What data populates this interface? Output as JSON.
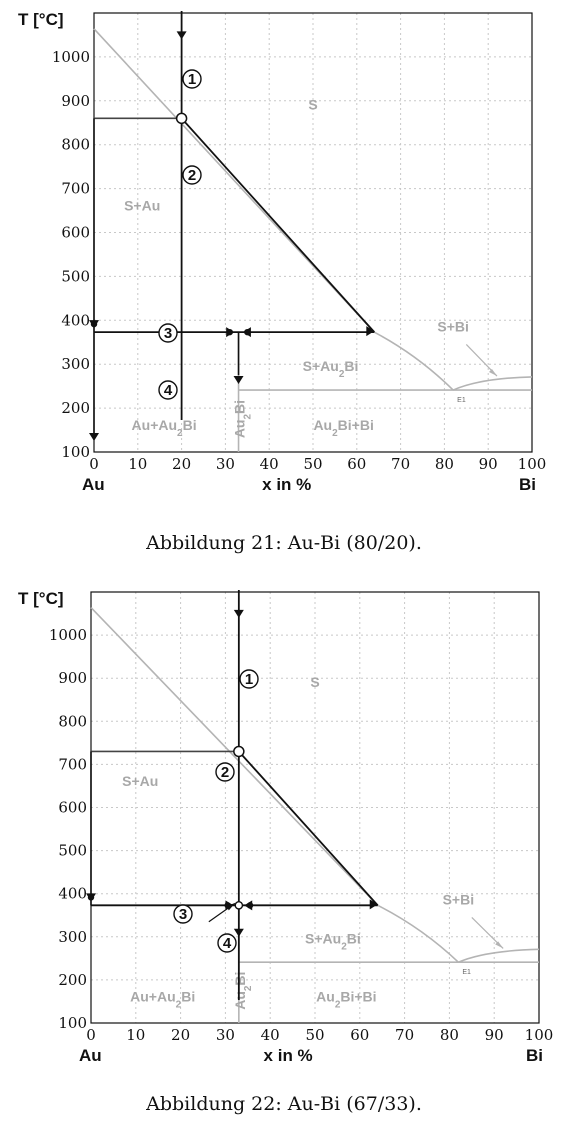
{
  "chart_data": [
    {
      "type": "diagram",
      "caption": "Abbildung 21: Au-Bi (80/20).",
      "ylabel": "T [°C]",
      "xlabel": "x  in %",
      "x_left_label": "Au",
      "x_right_label": "Bi",
      "xlim": [
        0,
        100
      ],
      "ylim": [
        100,
        1100
      ],
      "x_ticks": [
        "0",
        "10",
        "20",
        "30",
        "40",
        "50",
        "60",
        "70",
        "80",
        "90",
        "100"
      ],
      "y_ticks": [
        "100",
        "200",
        "300",
        "400",
        "500",
        "600",
        "700",
        "800",
        "900",
        "1000"
      ],
      "regions": [
        "S",
        "S+Au",
        "S+Au2Bi",
        "S+Bi",
        "Au+Au2Bi",
        "Au2Bi+Bi"
      ],
      "compound_label": "Au2Bi",
      "eutectic_label": "E1",
      "steps": [
        "1",
        "2",
        "3",
        "4"
      ],
      "composition_x": 20,
      "liquidus_T": 860,
      "peritectic_T": 373,
      "eutectic_T": 241,
      "eutectic_x": 82,
      "compound_x": 33,
      "peritectic_liquid_x": 64
    },
    {
      "type": "diagram",
      "caption": "Abbildung 22: Au-Bi (67/33).",
      "ylabel": "T [°C]",
      "xlabel": "x  in %",
      "x_left_label": "Au",
      "x_right_label": "Bi",
      "xlim": [
        0,
        100
      ],
      "ylim": [
        100,
        1100
      ],
      "x_ticks": [
        "0",
        "10",
        "20",
        "30",
        "40",
        "50",
        "60",
        "70",
        "80",
        "90",
        "100"
      ],
      "y_ticks": [
        "100",
        "200",
        "300",
        "400",
        "500",
        "600",
        "700",
        "800",
        "900",
        "1000"
      ],
      "regions": [
        "S",
        "S+Au",
        "S+Au2Bi",
        "S+Bi",
        "Au+Au2Bi",
        "Au2Bi+Bi"
      ],
      "compound_label": "Au2Bi",
      "eutectic_label": "E1",
      "steps": [
        "1",
        "2",
        "3",
        "4"
      ],
      "composition_x": 33,
      "liquidus_T": 730,
      "peritectic_T": 373,
      "eutectic_T": 241,
      "eutectic_x": 82,
      "compound_x": 33,
      "peritectic_liquid_x": 64
    }
  ]
}
